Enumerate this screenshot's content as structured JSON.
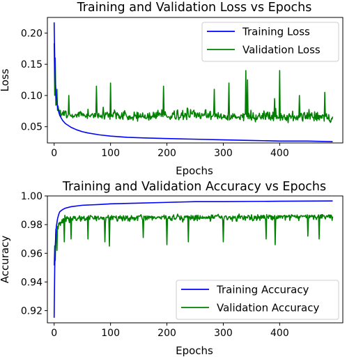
{
  "chart_data": [
    {
      "type": "line",
      "title": "Training and Validation Loss vs Epochs",
      "xlabel": "Epochs",
      "ylabel": "Loss",
      "xlim": [
        -12,
        512
      ],
      "ylim": [
        0.024,
        0.225
      ],
      "xticks": [
        0,
        100,
        200,
        300,
        400
      ],
      "yticks": [
        0.05,
        0.1,
        0.15,
        0.2
      ],
      "ytick_labels": [
        "0.05",
        "0.10",
        "0.15",
        "0.20"
      ],
      "legend": "top-right",
      "series": [
        {
          "name": "Training Loss",
          "color": "#0000ff",
          "points": [
            [
              0,
              0.217
            ],
            [
              1,
              0.16
            ],
            [
              2,
              0.125
            ],
            [
              3,
              0.105
            ],
            [
              4,
              0.095
            ],
            [
              6,
              0.082
            ],
            [
              8,
              0.074
            ],
            [
              10,
              0.068
            ],
            [
              15,
              0.06
            ],
            [
              20,
              0.055
            ],
            [
              30,
              0.049
            ],
            [
              40,
              0.045
            ],
            [
              50,
              0.042
            ],
            [
              60,
              0.04
            ],
            [
              80,
              0.037
            ],
            [
              100,
              0.035
            ],
            [
              130,
              0.033
            ],
            [
              160,
              0.032
            ],
            [
              200,
              0.031
            ],
            [
              250,
              0.03
            ],
            [
              300,
              0.029
            ],
            [
              350,
              0.028
            ],
            [
              400,
              0.027
            ],
            [
              450,
              0.027
            ],
            [
              494,
              0.026
            ]
          ]
        },
        {
          "name": "Validation Loss",
          "color": "#008000",
          "noisy": true,
          "base": [
            [
              0,
              0.19
            ],
            [
              1,
              0.1
            ],
            [
              3,
              0.085
            ],
            [
              6,
              0.078
            ],
            [
              10,
              0.072
            ],
            [
              20,
              0.068
            ],
            [
              494,
              0.065
            ]
          ],
          "amplitude": 0.017,
          "floor": 0.045,
          "spikes": [
            [
              2,
              0.16
            ],
            [
              5,
              0.11
            ],
            [
              26,
              0.1
            ],
            [
              75,
              0.115
            ],
            [
              100,
              0.12
            ],
            [
              194,
              0.115
            ],
            [
              284,
              0.11
            ],
            [
              310,
              0.12
            ],
            [
              340,
              0.14
            ],
            [
              343,
              0.125
            ],
            [
              391,
              0.095
            ],
            [
              400,
              0.14
            ],
            [
              435,
              0.1
            ],
            [
              480,
              0.105
            ]
          ]
        }
      ]
    },
    {
      "type": "line",
      "title": "Training and Validation Accuracy vs Epochs",
      "xlabel": "Epochs",
      "ylabel": "Accuracy",
      "xlim": [
        -12,
        512
      ],
      "ylim": [
        0.9115,
        1.0
      ],
      "xticks": [
        0,
        100,
        200,
        300,
        400
      ],
      "yticks": [
        0.92,
        0.94,
        0.96,
        0.98,
        1.0
      ],
      "ytick_labels": [
        "0.92",
        "0.94",
        "0.96",
        "0.98",
        "1.00"
      ],
      "legend": "bottom-right",
      "series": [
        {
          "name": "Training Accuracy",
          "color": "#0000ff",
          "points": [
            [
              0,
              0.915
            ],
            [
              1,
              0.95
            ],
            [
              2,
              0.965
            ],
            [
              3,
              0.974
            ],
            [
              4,
              0.979
            ],
            [
              6,
              0.984
            ],
            [
              8,
              0.987
            ],
            [
              10,
              0.989
            ],
            [
              15,
              0.9905
            ],
            [
              20,
              0.9915
            ],
            [
              30,
              0.9925
            ],
            [
              50,
              0.9935
            ],
            [
              80,
              0.994
            ],
            [
              100,
              0.9945
            ],
            [
              150,
              0.995
            ],
            [
              200,
              0.9955
            ],
            [
              250,
              0.996
            ],
            [
              300,
              0.996
            ],
            [
              400,
              0.9963
            ],
            [
              494,
              0.9965
            ]
          ]
        },
        {
          "name": "Validation Accuracy",
          "color": "#008000",
          "noisy": true,
          "base": [
            [
              0,
              0.951
            ],
            [
              1,
              0.966
            ],
            [
              3,
              0.976
            ],
            [
              6,
              0.979
            ],
            [
              10,
              0.982
            ],
            [
              20,
              0.985
            ],
            [
              494,
              0.986
            ]
          ],
          "amplitude": 0.0045,
          "ceiling": 0.9925,
          "dips": [
            [
              2,
              0.955
            ],
            [
              5,
              0.962
            ],
            [
              18,
              0.968
            ],
            [
              30,
              0.97
            ],
            [
              60,
              0.97
            ],
            [
              90,
              0.968
            ],
            [
              98,
              0.965
            ],
            [
              158,
              0.971
            ],
            [
              200,
              0.966
            ],
            [
              238,
              0.968
            ],
            [
              300,
              0.968
            ],
            [
              376,
              0.97
            ],
            [
              392,
              0.966
            ],
            [
              450,
              0.972
            ],
            [
              470,
              0.97
            ]
          ]
        }
      ]
    }
  ]
}
